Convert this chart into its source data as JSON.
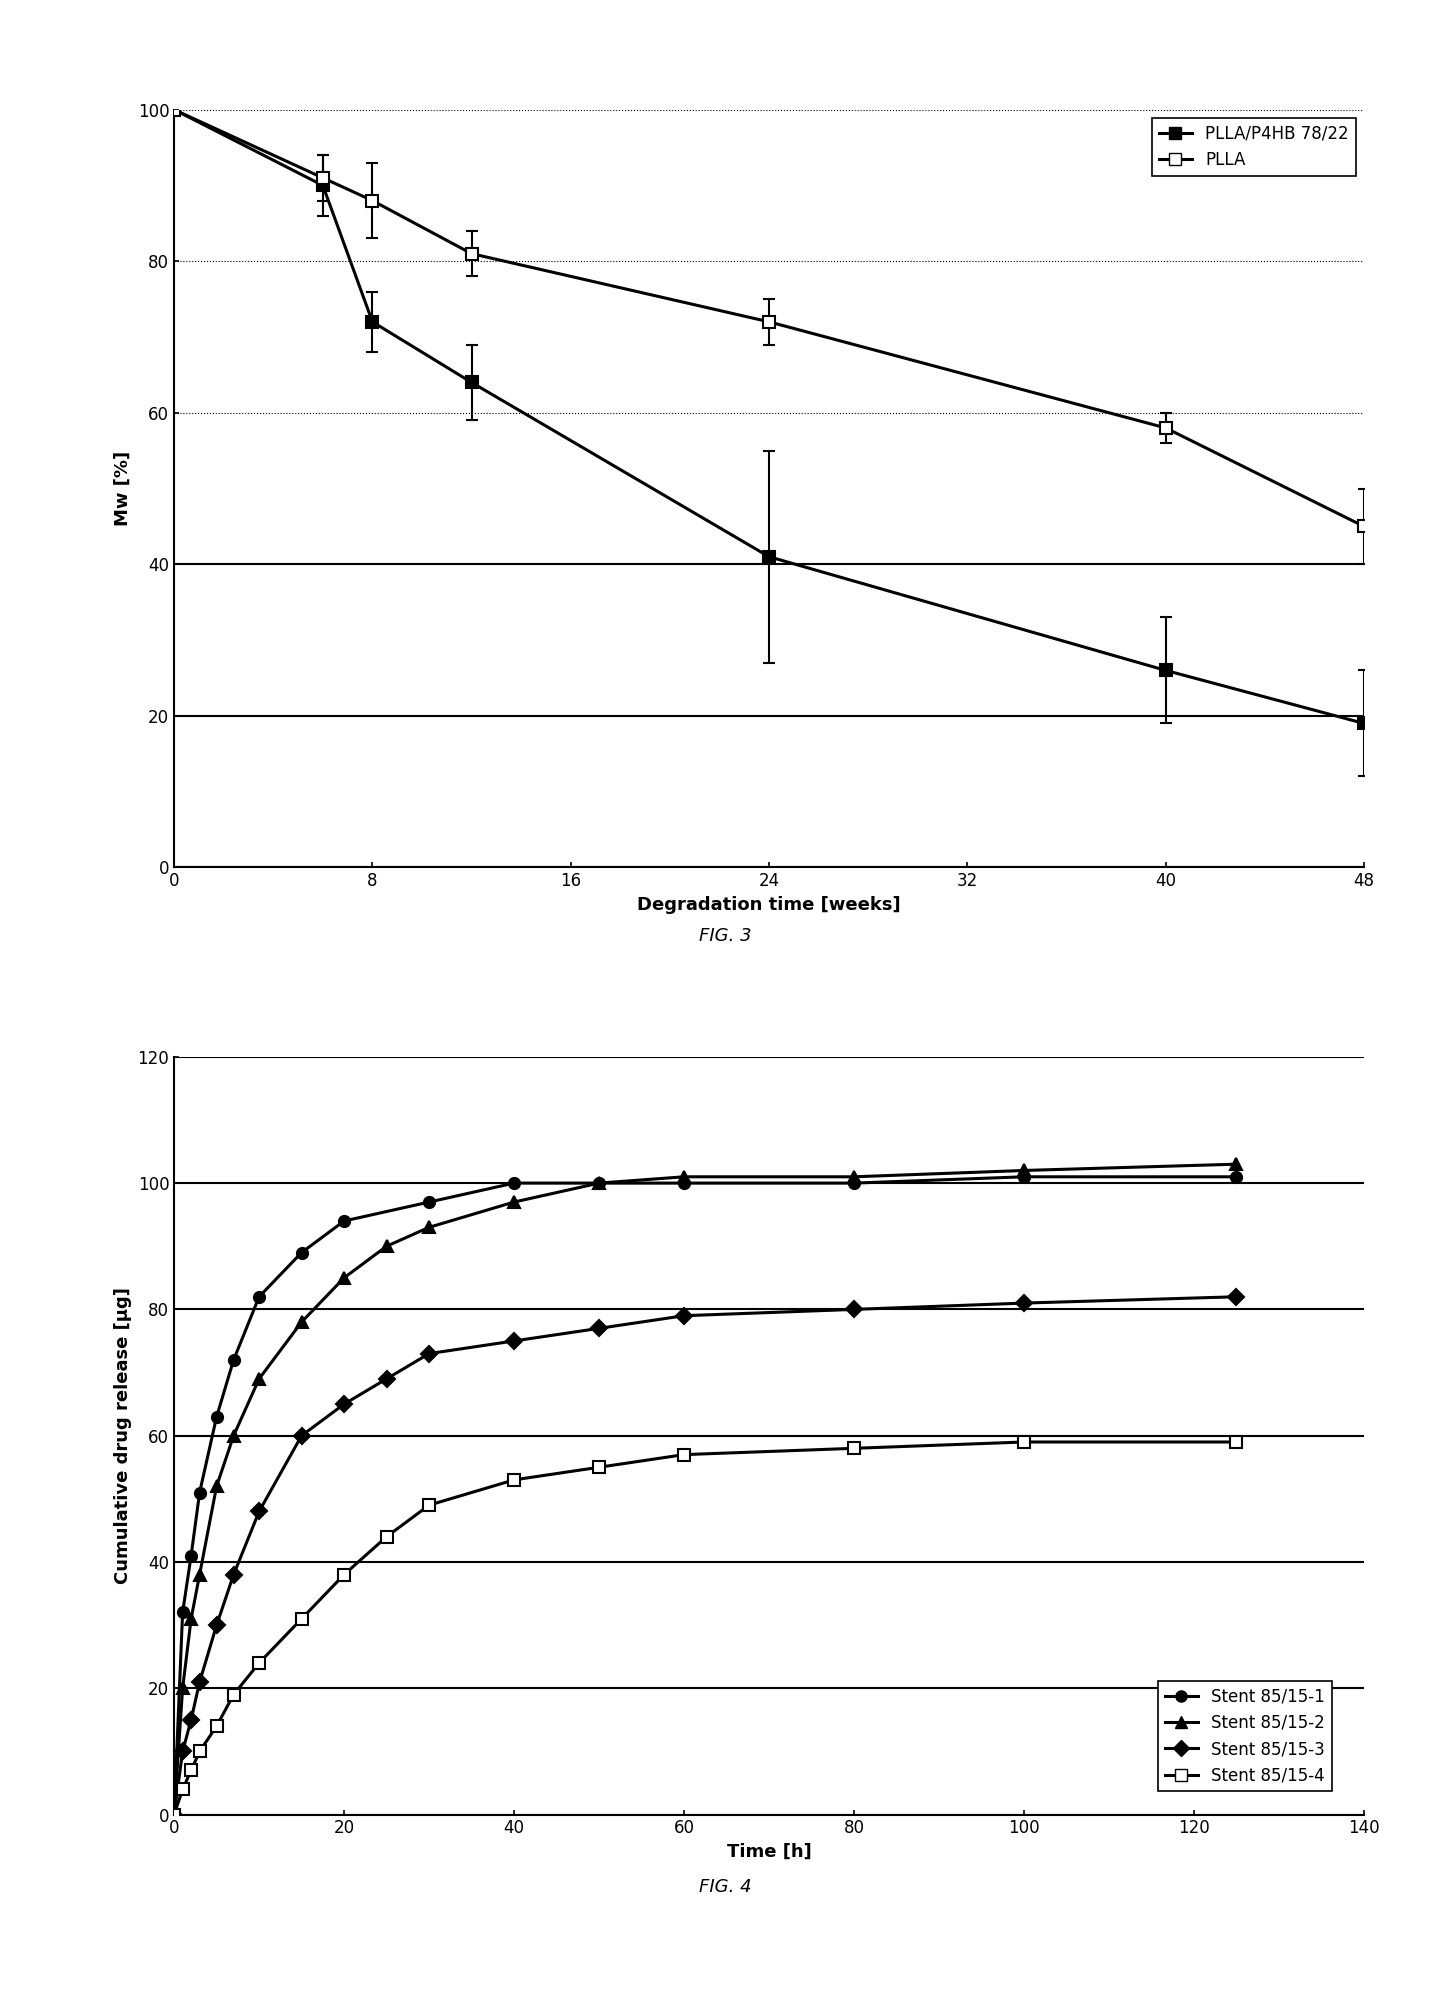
{
  "fig3": {
    "title": "FIG. 3",
    "xlabel": "Degradation time [weeks]",
    "ylabel": "Mw [%]",
    "xlim": [
      0,
      48
    ],
    "ylim": [
      0,
      100
    ],
    "xticks": [
      0,
      8,
      16,
      24,
      32,
      40,
      48
    ],
    "yticks": [
      0,
      20,
      40,
      60,
      80,
      100
    ],
    "hgrid_solid": [
      0,
      20,
      40
    ],
    "hgrid_dotted": [
      60,
      80,
      100
    ],
    "series": [
      {
        "label": "PLLA/P4HB 78/22",
        "marker": "s",
        "fillstyle": "full",
        "x": [
          0,
          6,
          8,
          12,
          24,
          40,
          48
        ],
        "y": [
          100,
          90,
          72,
          64,
          41,
          26,
          19
        ],
        "yerr": [
          0,
          4,
          4,
          5,
          14,
          7,
          7
        ]
      },
      {
        "label": "PLLA",
        "marker": "s",
        "fillstyle": "none",
        "x": [
          0,
          6,
          8,
          12,
          24,
          40,
          48
        ],
        "y": [
          100,
          91,
          88,
          81,
          72,
          58,
          45
        ],
        "yerr": [
          0,
          3,
          5,
          3,
          3,
          2,
          5
        ]
      }
    ]
  },
  "fig4": {
    "title": "FIG. 4",
    "xlabel": "Time [h]",
    "ylabel": "Cumulative drug release [µg]",
    "xlim": [
      0,
      140
    ],
    "ylim": [
      0,
      120
    ],
    "xticks": [
      0,
      20,
      40,
      60,
      80,
      100,
      120,
      140
    ],
    "yticks": [
      0,
      20,
      40,
      60,
      80,
      100,
      120
    ],
    "hgrid_solid": [
      0,
      20,
      40,
      60,
      80,
      100,
      120
    ],
    "series": [
      {
        "label": "Stent 85/15-1",
        "marker": "o",
        "fillstyle": "full",
        "x": [
          0,
          1,
          2,
          3,
          5,
          7,
          10,
          15,
          20,
          30,
          40,
          50,
          60,
          80,
          100,
          125
        ],
        "y": [
          0,
          32,
          41,
          51,
          63,
          72,
          82,
          89,
          94,
          97,
          100,
          100,
          100,
          100,
          101,
          101
        ]
      },
      {
        "label": "Stent 85/15-2",
        "marker": "^",
        "fillstyle": "full",
        "x": [
          0,
          1,
          2,
          3,
          5,
          7,
          10,
          15,
          20,
          25,
          30,
          40,
          50,
          60,
          80,
          100,
          125
        ],
        "y": [
          0,
          20,
          31,
          38,
          52,
          60,
          69,
          78,
          85,
          90,
          93,
          97,
          100,
          101,
          101,
          102,
          103
        ]
      },
      {
        "label": "Stent 85/15-3",
        "marker": "D",
        "fillstyle": "full",
        "x": [
          0,
          1,
          2,
          3,
          5,
          7,
          10,
          15,
          20,
          25,
          30,
          40,
          50,
          60,
          80,
          100,
          125
        ],
        "y": [
          0,
          10,
          15,
          21,
          30,
          38,
          48,
          60,
          65,
          69,
          73,
          75,
          77,
          79,
          80,
          81,
          82
        ]
      },
      {
        "label": "Stent 85/15-4",
        "marker": "s",
        "fillstyle": "none",
        "x": [
          0,
          1,
          2,
          3,
          5,
          7,
          10,
          15,
          20,
          25,
          30,
          40,
          50,
          60,
          80,
          100,
          125
        ],
        "y": [
          0,
          4,
          7,
          10,
          14,
          19,
          24,
          31,
          38,
          44,
          49,
          53,
          55,
          57,
          58,
          59,
          59
        ]
      }
    ]
  }
}
